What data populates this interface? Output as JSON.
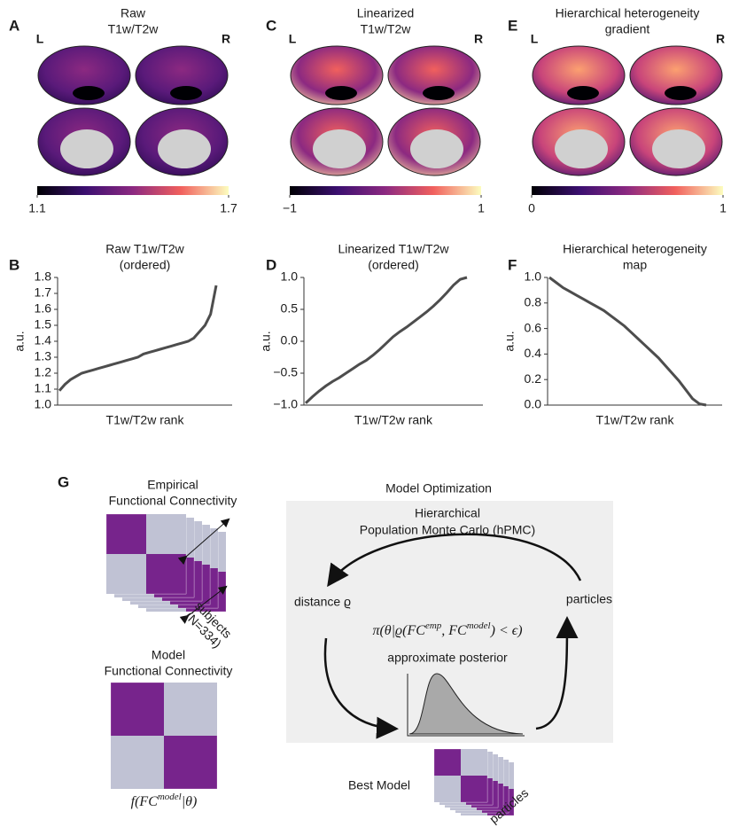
{
  "panel_labels": [
    "A",
    "C",
    "E",
    "B",
    "D",
    "F",
    "G"
  ],
  "brain_maps": [
    {
      "title": [
        "Raw",
        "T1w/T2w"
      ],
      "hemispheres": [
        "L",
        "R"
      ],
      "colorbar": {
        "lim": [
          1.1,
          1.7
        ],
        "ticks": [
          1.1,
          1.7
        ]
      }
    },
    {
      "title": [
        "Linearized",
        "T1w/T2w"
      ],
      "hemispheres": [
        "L",
        "R"
      ],
      "colorbar": {
        "lim": [
          -1,
          1
        ],
        "ticks": [
          {
            "value": -1,
            "label": "−1"
          },
          1
        ]
      }
    },
    {
      "title": [
        "Hierarchical heterogeneity",
        "gradient"
      ],
      "hemispheres": [
        "L",
        "R"
      ],
      "colorbar": {
        "lim": [
          0,
          1
        ],
        "ticks": [
          0,
          1
        ]
      }
    }
  ],
  "chart_data": [
    {
      "type": "line",
      "title": [
        "Raw T1w/T2w",
        "(ordered)"
      ],
      "ylabel": "a.u.",
      "xlabel": "T1w/T2w rank",
      "color": "#4d4d4d",
      "values": [
        1.09,
        1.13,
        1.16,
        1.18,
        1.2,
        1.21,
        1.22,
        1.23,
        1.24,
        1.25,
        1.26,
        1.27,
        1.28,
        1.29,
        1.3,
        1.32,
        1.33,
        1.34,
        1.35,
        1.36,
        1.37,
        1.38,
        1.39,
        1.4,
        1.42,
        1.46,
        1.5,
        1.57,
        1.75
      ],
      "ylim": [
        1.0,
        1.8
      ],
      "yticks": [
        {
          "value": 1.0,
          "label": "1.0"
        },
        1.1,
        1.2,
        1.3,
        1.4,
        1.5,
        1.6,
        1.7,
        1.8
      ]
    },
    {
      "type": "line",
      "title": [
        "Linearized T1w/T2w",
        "(ordered)"
      ],
      "ylabel": "a.u.",
      "xlabel": "T1w/T2w rank",
      "color": "#4d4d4d",
      "values": [
        -0.97,
        -0.87,
        -0.78,
        -0.7,
        -0.63,
        -0.57,
        -0.5,
        -0.43,
        -0.36,
        -0.3,
        -0.22,
        -0.13,
        -0.03,
        0.07,
        0.15,
        0.22,
        0.3,
        0.38,
        0.46,
        0.55,
        0.65,
        0.76,
        0.88,
        0.97,
        1.0
      ],
      "ylim": [
        -1,
        1
      ],
      "yticks": [
        {
          "value": -1,
          "label": "−1.0"
        },
        {
          "value": -0.5,
          "label": "−0.5"
        },
        {
          "value": 0,
          "label": "0.0"
        },
        0.5,
        {
          "value": 1,
          "label": "1.0"
        }
      ]
    },
    {
      "type": "line",
      "title": [
        "Hierarchical heterogeneity",
        "map"
      ],
      "ylabel": "a.u.",
      "xlabel": "T1w/T2w rank",
      "color": "#4d4d4d",
      "values": [
        1.0,
        0.96,
        0.92,
        0.89,
        0.86,
        0.83,
        0.8,
        0.77,
        0.74,
        0.7,
        0.66,
        0.62,
        0.57,
        0.52,
        0.47,
        0.42,
        0.37,
        0.31,
        0.25,
        0.19,
        0.12,
        0.05,
        0.01,
        0.0
      ],
      "ylim": [
        0,
        1
      ],
      "yticks": [
        {
          "value": 0,
          "label": "0.0"
        },
        0.2,
        0.4,
        0.6,
        0.8,
        {
          "value": 1,
          "label": "1.0"
        }
      ]
    }
  ],
  "diagram": {
    "empirical": [
      "Empirical",
      "Functional Connectivity"
    ],
    "subjects": [
      "subjects",
      "(N=334)"
    ],
    "model": [
      "Model",
      "Functional Connectivity"
    ],
    "model_formula": [
      "f(FC",
      "model",
      "|θ)"
    ],
    "title": "Model Optimization",
    "method": [
      "Hierarchical",
      "Population Monte Carlo (hPMC)"
    ],
    "distance": "distance ϱ",
    "particles": "particles",
    "criterion": [
      "π(θ|ϱ(FC",
      "emp",
      ", FC",
      "model",
      ") < ϵ)"
    ],
    "posterior": "approximate posterior",
    "best_model": "Best Model",
    "best_particles": "particles"
  }
}
